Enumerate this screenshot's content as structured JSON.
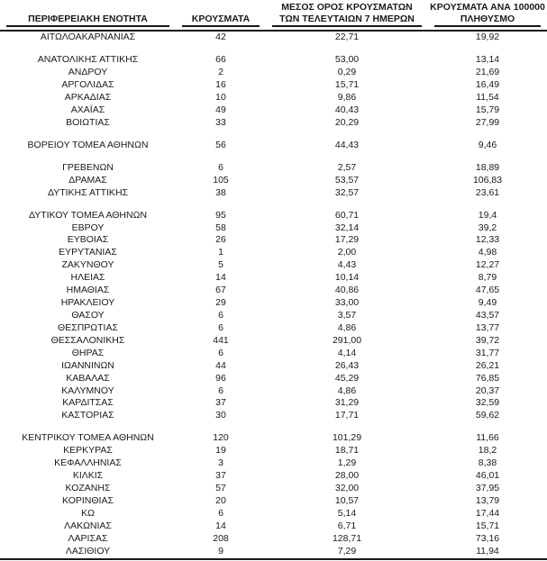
{
  "colors": {
    "text": "#1a1a1a",
    "rule": "#161616",
    "background": "#ffffff"
  },
  "table": {
    "headers": [
      {
        "line1": "",
        "line2": "ΠΕΡΙΦΕΡΕΙΑΚΗ ΕΝΟΤΗΤΑ"
      },
      {
        "line1": "",
        "line2": "ΚΡΟΥΣΜΑΤΑ"
      },
      {
        "line1": "ΜΕΣΟΣ ΟΡΟΣ ΚΡΟΥΣΜΑΤΩΝ",
        "line2": "ΤΩΝ ΤΕΛΕΥΤΑΙΩΝ 7 ΗΜΕΡΩΝ"
      },
      {
        "line1": "ΚΡΟΥΣΜΑΤΑ ΑΝΑ 100000",
        "line2": "ΠΛΗΘΥΣΜΟ"
      }
    ],
    "rows": [
      {
        "region": "ΑΙΤΩΛΟΑΚΑΡΝΑΝΙΑΣ",
        "cases": "42",
        "avg_7d": "22,71",
        "per_100k": "19,92"
      },
      {
        "gap": true
      },
      {
        "region": "ΑΝΑΤΟΛΙΚΗΣ ΑΤΤΙΚΗΣ",
        "cases": "66",
        "avg_7d": "53,00",
        "per_100k": "13,14"
      },
      {
        "region": "ΑΝΔΡΟΥ",
        "cases": "2",
        "avg_7d": "0,29",
        "per_100k": "21,69"
      },
      {
        "region": "ΑΡΓΟΛΙΔΑΣ",
        "cases": "16",
        "avg_7d": "15,71",
        "per_100k": "16,49"
      },
      {
        "region": "ΑΡΚΑΔΙΑΣ",
        "cases": "10",
        "avg_7d": "9,86",
        "per_100k": "11,54"
      },
      {
        "region": "ΑΧΑΪΑΣ",
        "cases": "49",
        "avg_7d": "40,43",
        "per_100k": "15,79"
      },
      {
        "region": "ΒΟΙΩΤΙΑΣ",
        "cases": "33",
        "avg_7d": "20,29",
        "per_100k": "27,99"
      },
      {
        "gap": true
      },
      {
        "region": "ΒΟΡΕΙΟΥ ΤΟΜΕΑ ΑΘΗΝΩΝ",
        "cases": "56",
        "avg_7d": "44,43",
        "per_100k": "9,46"
      },
      {
        "gap": true
      },
      {
        "region": "ΓΡΕΒΕΝΩΝ",
        "cases": "6",
        "avg_7d": "2,57",
        "per_100k": "18,89"
      },
      {
        "region": "ΔΡΑΜΑΣ",
        "cases": "105",
        "avg_7d": "53,57",
        "per_100k": "106,83"
      },
      {
        "region": "ΔΥΤΙΚΗΣ ΑΤΤΙΚΗΣ",
        "cases": "38",
        "avg_7d": "32,57",
        "per_100k": "23,61"
      },
      {
        "gap": true
      },
      {
        "region": "ΔΥΤΙΚΟΥ ΤΟΜΕΑ ΑΘΗΝΩΝ",
        "cases": "95",
        "avg_7d": "60,71",
        "per_100k": "19,4"
      },
      {
        "region": "ΕΒΡΟΥ",
        "cases": "58",
        "avg_7d": "32,14",
        "per_100k": "39,2"
      },
      {
        "region": "ΕΥΒΟΙΑΣ",
        "cases": "26",
        "avg_7d": "17,29",
        "per_100k": "12,33"
      },
      {
        "region": "ΕΥΡΥΤΑΝΙΑΣ",
        "cases": "1",
        "avg_7d": "2,00",
        "per_100k": "4,98"
      },
      {
        "region": "ΖΑΚΥΝΘΟΥ",
        "cases": "5",
        "avg_7d": "4,43",
        "per_100k": "12,27"
      },
      {
        "region": "ΗΛΕΙΑΣ",
        "cases": "14",
        "avg_7d": "10,14",
        "per_100k": "8,79"
      },
      {
        "region": "ΗΜΑΘΙΑΣ",
        "cases": "67",
        "avg_7d": "40,86",
        "per_100k": "47,65"
      },
      {
        "region": "ΗΡΑΚΛΕΙΟΥ",
        "cases": "29",
        "avg_7d": "33,00",
        "per_100k": "9,49"
      },
      {
        "region": "ΘΑΣΟΥ",
        "cases": "6",
        "avg_7d": "3,57",
        "per_100k": "43,57"
      },
      {
        "region": "ΘΕΣΠΡΩΤΙΑΣ",
        "cases": "6",
        "avg_7d": "4,86",
        "per_100k": "13,77"
      },
      {
        "region": "ΘΕΣΣΑΛΟΝΙΚΗΣ",
        "cases": "441",
        "avg_7d": "291,00",
        "per_100k": "39,72"
      },
      {
        "region": "ΘΗΡΑΣ",
        "cases": "6",
        "avg_7d": "4,14",
        "per_100k": "31,77"
      },
      {
        "region": "ΙΩΑΝΝΙΝΩΝ",
        "cases": "44",
        "avg_7d": "26,43",
        "per_100k": "26,21"
      },
      {
        "region": "ΚΑΒΑΛΑΣ",
        "cases": "96",
        "avg_7d": "45,29",
        "per_100k": "76,85"
      },
      {
        "region": "ΚΑΛΥΜΝΟΥ",
        "cases": "6",
        "avg_7d": "4,86",
        "per_100k": "20,37"
      },
      {
        "region": "ΚΑΡΔΙΤΣΑΣ",
        "cases": "37",
        "avg_7d": "31,29",
        "per_100k": "32,59"
      },
      {
        "region": "ΚΑΣΤΟΡΙΑΣ",
        "cases": "30",
        "avg_7d": "17,71",
        "per_100k": "59,62"
      },
      {
        "gap": true
      },
      {
        "region": "ΚΕΝΤΡΙΚΟΥ ΤΟΜΕΑ ΑΘΗΝΩΝ",
        "cases": "120",
        "avg_7d": "101,29",
        "per_100k": "11,66"
      },
      {
        "region": "ΚΕΡΚΥΡΑΣ",
        "cases": "19",
        "avg_7d": "18,71",
        "per_100k": "18,2"
      },
      {
        "region": "ΚΕΦΑΛΛΗΝΙΑΣ",
        "cases": "3",
        "avg_7d": "1,29",
        "per_100k": "8,38"
      },
      {
        "region": "ΚΙΛΚΙΣ",
        "cases": "37",
        "avg_7d": "28,00",
        "per_100k": "46,01"
      },
      {
        "region": "ΚΟΖΑΝΗΣ",
        "cases": "57",
        "avg_7d": "32,00",
        "per_100k": "37,95"
      },
      {
        "region": "ΚΟΡΙΝΘΙΑΣ",
        "cases": "20",
        "avg_7d": "10,57",
        "per_100k": "13,79"
      },
      {
        "region": "ΚΩ",
        "cases": "6",
        "avg_7d": "5,14",
        "per_100k": "17,44"
      },
      {
        "region": "ΛΑΚΩΝΙΑΣ",
        "cases": "14",
        "avg_7d": "6,71",
        "per_100k": "15,71"
      },
      {
        "region": "ΛΑΡΙΣΑΣ",
        "cases": "208",
        "avg_7d": "128,71",
        "per_100k": "73,16"
      },
      {
        "region": "ΛΑΣΙΘΙΟΥ",
        "cases": "9",
        "avg_7d": "7,29",
        "per_100k": "11,94"
      }
    ]
  }
}
